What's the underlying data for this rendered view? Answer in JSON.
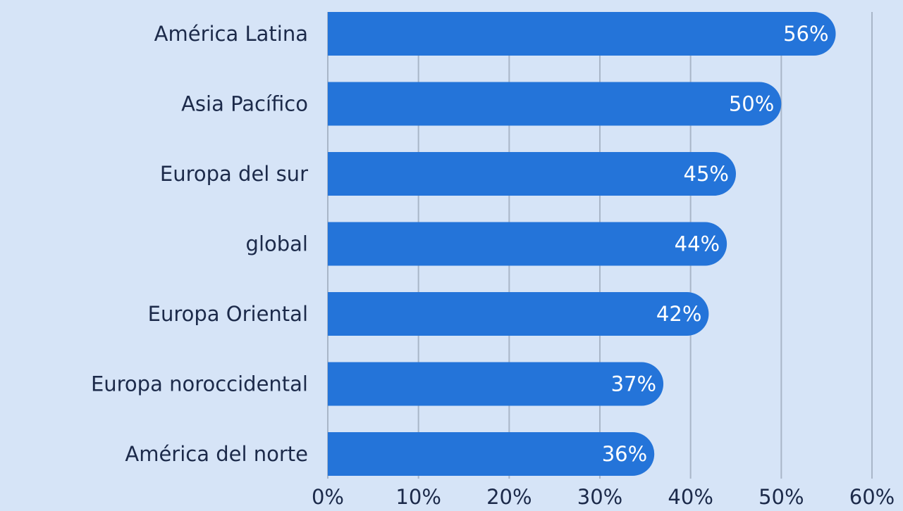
{
  "chart_data": {
    "type": "barh",
    "categories": [
      "América Latina",
      "Asia Pacífico",
      "Europa del sur",
      "global",
      "Europa Oriental",
      "Europa noroccidental",
      "América del norte"
    ],
    "values": [
      56,
      50,
      45,
      44,
      42,
      37,
      36
    ],
    "value_labels": [
      "56%",
      "50%",
      "45%",
      "44%",
      "42%",
      "37%",
      "36%"
    ],
    "color": "#2474d9",
    "xlim": [
      0,
      60
    ],
    "xticks": [
      {
        "value": 0,
        "label": "0%"
      },
      {
        "value": 10,
        "label": "10%"
      },
      {
        "value": 20,
        "label": "20%"
      },
      {
        "value": 30,
        "label": "30%"
      },
      {
        "value": 40,
        "label": "40%"
      },
      {
        "value": 50,
        "label": "50%"
      },
      {
        "value": 60,
        "label": "60%"
      }
    ],
    "grid": true
  }
}
